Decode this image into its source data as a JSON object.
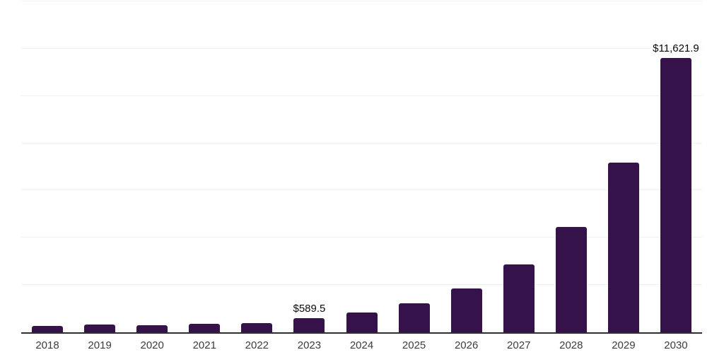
{
  "chart_data": {
    "type": "bar",
    "title": "",
    "xlabel": "",
    "ylabel": "",
    "categories": [
      "2018",
      "2019",
      "2020",
      "2021",
      "2022",
      "2023",
      "2024",
      "2025",
      "2026",
      "2027",
      "2028",
      "2029",
      "2030"
    ],
    "values": [
      260,
      340,
      290,
      350,
      400,
      589.5,
      840,
      1220,
      1850,
      2870,
      4470,
      7190,
      11621.9
    ],
    "data_labels": [
      null,
      null,
      null,
      null,
      null,
      "$589.5",
      null,
      null,
      null,
      null,
      null,
      null,
      "$11,621.9"
    ],
    "ylim": [
      0,
      14000
    ],
    "gridline_step": 2000,
    "grid": true,
    "legend": false,
    "y_tick_labels_visible": false,
    "colors": {
      "bar": "#35124a",
      "gridline": "#f1f1f1",
      "axis_line": "#2e2e2e",
      "tick_label": "#3c3c3c",
      "data_label": "#0a0a0a",
      "background": "#ffffff"
    }
  }
}
